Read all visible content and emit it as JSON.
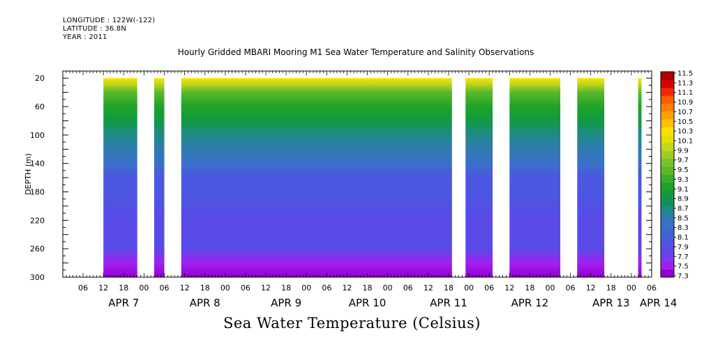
{
  "header": {
    "longitude": "LONGITUDE : 122W(-122)",
    "latitude": "LATITUDE : 36.8N",
    "year": "YEAR : 2011"
  },
  "title": "Hourly Gridded MBARI Mooring M1 Sea Water Temperature and Salinity Observations",
  "bottom_title": "Sea Water Temperature (Celsius)",
  "chart_data": {
    "type": "heatmap",
    "title": "Hourly Gridded MBARI Mooring M1 Sea Water Temperature and Salinity Observations",
    "xlabel": "",
    "ylabel": "DEPTH (m)",
    "x_units": "hours",
    "x_range": [
      0,
      168
    ],
    "y_range": [
      10,
      300
    ],
    "y_inverted": true,
    "y_ticks": [
      20,
      60,
      100,
      140,
      180,
      220,
      260,
      300
    ],
    "x_tick_labels": [
      "06",
      "12",
      "18",
      "00",
      "06",
      "12",
      "18",
      "00",
      "06",
      "12",
      "18",
      "00",
      "06",
      "12",
      "18",
      "00",
      "06",
      "12",
      "18",
      "00",
      "06",
      "12",
      "18",
      "00",
      "06",
      "12",
      "18",
      "00",
      "06"
    ],
    "x_tick_hours": [
      6,
      12,
      18,
      24,
      30,
      36,
      42,
      48,
      54,
      60,
      66,
      72,
      78,
      84,
      90,
      96,
      102,
      108,
      114,
      120,
      126,
      132,
      138,
      144,
      150,
      156,
      162,
      168,
      174
    ],
    "day_labels": [
      {
        "label": "APR  7",
        "hour": 18
      },
      {
        "label": "APR  8",
        "hour": 42
      },
      {
        "label": "APR  9",
        "hour": 66
      },
      {
        "label": "APR 10",
        "hour": 90
      },
      {
        "label": "APR 11",
        "hour": 114
      },
      {
        "label": "APR 12",
        "hour": 138
      },
      {
        "label": "APR 13",
        "hour": 162
      },
      {
        "label": "APR 14",
        "hour": 176
      }
    ],
    "data_segments": [
      {
        "start": 12,
        "end": 22
      },
      {
        "start": 27,
        "end": 30
      },
      {
        "start": 35,
        "end": 115
      },
      {
        "start": 119,
        "end": 127
      },
      {
        "start": 132,
        "end": 147
      },
      {
        "start": 152,
        "end": 160
      },
      {
        "start": 170,
        "end": 171
      }
    ],
    "colorbar": {
      "min": 7.3,
      "max": 11.5,
      "labels": [
        "11.5",
        "11.3",
        "11.1",
        "10.9",
        "10.7",
        "10.5",
        "10.3",
        "10.1",
        "9.9",
        "9.7",
        "9.5",
        "9.3",
        "9.1",
        "8.9",
        "8.7",
        "8.5",
        "8.3",
        "8.1",
        "7.9",
        "7.7",
        "7.5",
        "7.3"
      ],
      "colors": [
        "#9400d3",
        "#a020f0",
        "#7a3cf0",
        "#5a4ae8",
        "#4b57e0",
        "#3f64d8",
        "#3a70c8",
        "#2f7ab0",
        "#1f8a8a",
        "#0f8f5a",
        "#109a40",
        "#1fa32a",
        "#3aae2a",
        "#5ab82a",
        "#7ac22e",
        "#9ccc2a",
        "#c0d81e",
        "#e4e000",
        "#ffe000",
        "#ffc000",
        "#ffa000",
        "#ff8000",
        "#ff5a00",
        "#f02800",
        "#d80000",
        "#b00000"
      ]
    },
    "temperature_profile": [
      {
        "depth": 10,
        "temp": 10.7
      },
      {
        "depth": 20,
        "temp": 10.3
      },
      {
        "depth": 28,
        "temp": 9.9
      },
      {
        "depth": 40,
        "temp": 9.5
      },
      {
        "depth": 60,
        "temp": 9.2
      },
      {
        "depth": 80,
        "temp": 9.0
      },
      {
        "depth": 100,
        "temp": 8.7
      },
      {
        "depth": 120,
        "temp": 8.5
      },
      {
        "depth": 140,
        "temp": 8.3
      },
      {
        "depth": 160,
        "temp": 8.1
      },
      {
        "depth": 180,
        "temp": 8.0
      },
      {
        "depth": 220,
        "temp": 7.9
      },
      {
        "depth": 260,
        "temp": 7.8
      },
      {
        "depth": 280,
        "temp": 7.6
      },
      {
        "depth": 300,
        "temp": 7.4
      }
    ]
  }
}
